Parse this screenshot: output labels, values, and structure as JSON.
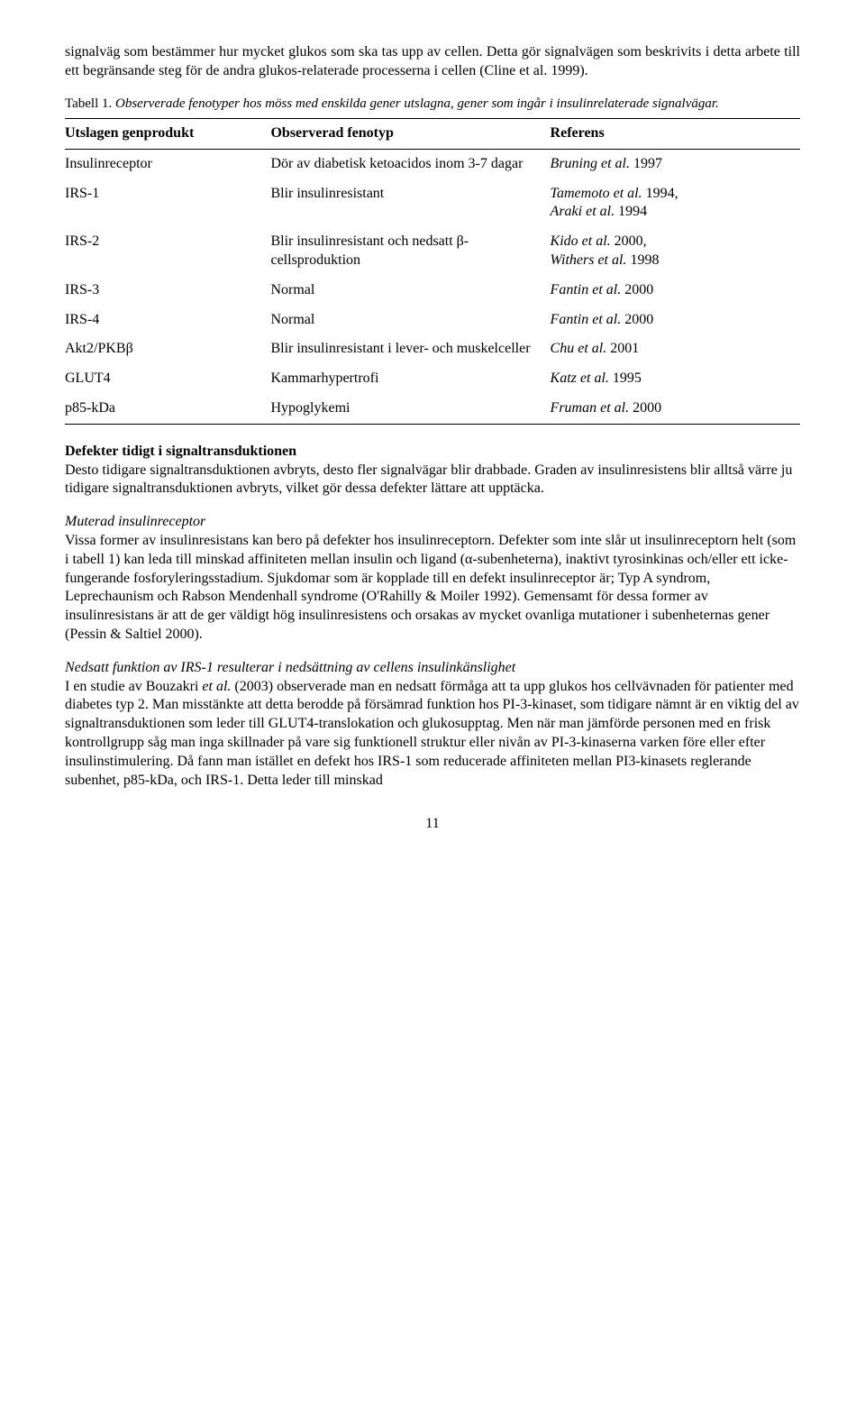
{
  "intro_paragraph": "signalväg som bestämmer hur mycket glukos som ska tas upp av cellen. Detta gör signalvägen som beskrivits i detta arbete till ett begränsande steg för de andra glukos-relaterade processerna i cellen (Cline et al. 1999).",
  "table_caption_prefix": "Tabell 1. ",
  "table_caption_italic": "Observerade fenotyper hos möss med enskilda gener utslagna, gener som ingår i insulinrelaterade signalvägar.",
  "table": {
    "headers": [
      "Utslagen genprodukt",
      "Observerad fenotyp",
      "Referens"
    ],
    "rows": [
      {
        "c0": "Insulinreceptor",
        "c1": "Dör av diabetisk ketoacidos inom 3-7 dagar",
        "c2_i": "Bruning et al.",
        "c2_t": " 1997"
      },
      {
        "c0": "IRS-1",
        "c1": "Blir insulinresistant",
        "c2_i": "Tamemoto et al.",
        "c2_t": " 1994,",
        "c2_i2": "Araki et al.",
        "c2_t2": " 1994"
      },
      {
        "c0": "IRS-2",
        "c1": "Blir insulinresistant och nedsatt β-cellsproduktion",
        "c2_i": "Kido et al.",
        "c2_t": " 2000,",
        "c2_i2": "Withers et al.",
        "c2_t2": " 1998"
      },
      {
        "c0": "IRS-3",
        "c1": "Normal",
        "c2_i": "Fantin et al.",
        "c2_t": " 2000"
      },
      {
        "c0": "IRS-4",
        "c1": "Normal",
        "c2_i": "Fantin et al.",
        "c2_t": " 2000"
      },
      {
        "c0": "Akt2/PKBβ",
        "c1": "Blir insulinresistant i lever- och muskelceller",
        "c2_i": "Chu et al.",
        "c2_t": " 2001"
      },
      {
        "c0": "GLUT4",
        "c1": "Kammarhypertrofi",
        "c2_i": "Katz et al.",
        "c2_t": " 1995"
      },
      {
        "c0": "p85-kDa",
        "c1": "Hypoglykemi",
        "c2_i": "Fruman et al.",
        "c2_t": " 2000"
      }
    ],
    "col_widths": [
      "28%",
      "38%",
      "34%"
    ]
  },
  "section1": {
    "heading": "Defekter tidigt i signaltransduktionen",
    "body": "Desto tidigare signaltransduktionen avbryts, desto fler signalvägar blir drabbade. Graden av insulinresistens blir alltså värre ju tidigare signaltransduktionen avbryts, vilket gör dessa defekter lättare att upptäcka."
  },
  "section2": {
    "heading": "Muterad insulinreceptor",
    "body": "Vissa former av insulinresistans kan bero på defekter hos insulinreceptorn. Defekter som inte slår ut insulinreceptorn helt (som i tabell 1) kan leda till minskad affiniteten mellan insulin och ligand (α-subenheterna), inaktivt tyrosinkinas och/eller ett icke-fungerande fosforyleringsstadium. Sjukdomar som är kopplade till en defekt insulinreceptor är; Typ A syndrom, Leprechaunism och Rabson Mendenhall syndrome (O'Rahilly & Moiler 1992). Gemensamt för dessa former av insulinresistans är att de ger väldigt hög insulinresistens och orsakas av mycket ovanliga mutationer i subenheternas gener (Pessin & Saltiel 2000)."
  },
  "section3": {
    "heading": "Nedsatt funktion av IRS-1 resulterar i nedsättning av cellens insulinkänslighet",
    "body_pre": "I en studie av Bouzakri ",
    "body_italic": "et al.",
    "body_post": " (2003) observerade man en nedsatt förmåga att ta upp glukos hos cellvävnaden för patienter med diabetes typ 2. Man misstänkte att detta berodde på försämrad funktion hos PI-3-kinaset, som tidigare nämnt är en viktig del av signaltransduktionen som leder till GLUT4-translokation och glukosupptag. Men när man jämförde personen med en frisk kontrollgrupp såg man inga skillnader på vare sig funktionell struktur eller nivån av PI-3-kinaserna varken före eller efter insulinstimulering. Då fann man istället en defekt hos IRS-1 som reducerade affiniteten mellan PI3-kinasets reglerande subenhet, p85-kDa, och IRS-1. Detta leder till minskad"
  },
  "page_number": "11"
}
